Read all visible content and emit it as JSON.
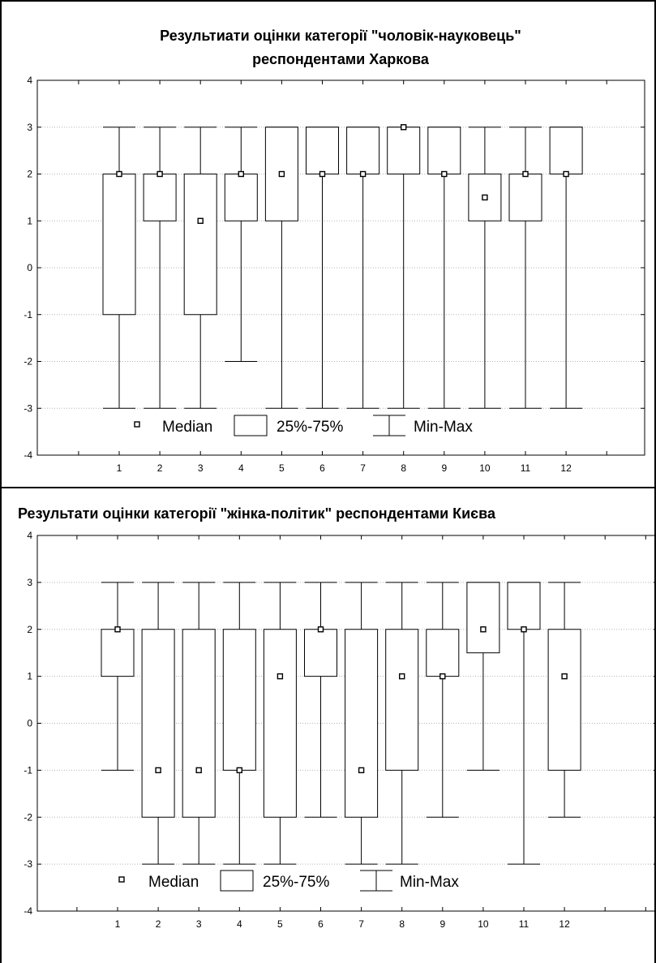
{
  "chart_data": [
    {
      "type": "box",
      "title_lines": [
        "Результиати оцінки категорії \"чоловік-науковець\"",
        "респондентами Харкова"
      ],
      "categories": [
        "1",
        "2",
        "3",
        "4",
        "5",
        "6",
        "7",
        "8",
        "9",
        "10",
        "11",
        "12"
      ],
      "ylim": [
        -4,
        4
      ],
      "yticks": [
        4,
        3,
        2,
        1,
        0,
        -1,
        -2,
        -3,
        -4
      ],
      "grid": true,
      "legend_position": "bottom-inside",
      "series": [
        {
          "min": -3,
          "q1": -1,
          "median": 2,
          "q3": 2,
          "max": 3
        },
        {
          "min": -3,
          "q1": 1,
          "median": 2,
          "q3": 2,
          "max": 3
        },
        {
          "min": -3,
          "q1": -1,
          "median": 1,
          "q3": 2,
          "max": 3
        },
        {
          "min": -2,
          "q1": 1,
          "median": 2,
          "q3": 2,
          "max": 3
        },
        {
          "min": -3,
          "q1": 1,
          "median": 2,
          "q3": 3,
          "max": 3
        },
        {
          "min": -3,
          "q1": 2,
          "median": 2,
          "q3": 3,
          "max": 3
        },
        {
          "min": -3,
          "q1": 2,
          "median": 2,
          "q3": 3,
          "max": 3
        },
        {
          "min": -3,
          "q1": 2,
          "median": 3,
          "q3": 3,
          "max": 3
        },
        {
          "min": -3,
          "q1": 2,
          "median": 2,
          "q3": 3,
          "max": 3
        },
        {
          "min": -3,
          "q1": 1,
          "median": 1.5,
          "q3": 2,
          "max": 3
        },
        {
          "min": -3,
          "q1": 1,
          "median": 2,
          "q3": 2,
          "max": 3
        },
        {
          "min": -3,
          "q1": 2,
          "median": 2,
          "q3": 3,
          "max": 3
        }
      ]
    },
    {
      "type": "box",
      "title_lines": [
        "Результати оцінки категорії \"жінка-політик\" респондентами Києва"
      ],
      "categories": [
        "1",
        "2",
        "3",
        "4",
        "5",
        "6",
        "7",
        "8",
        "9",
        "10",
        "11",
        "12"
      ],
      "ylim": [
        -4,
        4
      ],
      "yticks": [
        4,
        3,
        2,
        1,
        0,
        -1,
        -2,
        -3,
        -4
      ],
      "grid": true,
      "legend_position": "bottom-inside",
      "series": [
        {
          "min": -1,
          "q1": 1,
          "median": 2,
          "q3": 2,
          "max": 3
        },
        {
          "min": -3,
          "q1": -2,
          "median": -1,
          "q3": 2,
          "max": 3
        },
        {
          "min": -3,
          "q1": -2,
          "median": -1,
          "q3": 2,
          "max": 3
        },
        {
          "min": -3,
          "q1": -1,
          "median": -1,
          "q3": 2,
          "max": 3
        },
        {
          "min": -3,
          "q1": -2,
          "median": 1,
          "q3": 2,
          "max": 3
        },
        {
          "min": -2,
          "q1": 1,
          "median": 2,
          "q3": 2,
          "max": 3
        },
        {
          "min": -3,
          "q1": -2,
          "median": -1,
          "q3": 2,
          "max": 3
        },
        {
          "min": -3,
          "q1": -1,
          "median": 1,
          "q3": 2,
          "max": 3
        },
        {
          "min": -2,
          "q1": 1,
          "median": 1,
          "q3": 2,
          "max": 3
        },
        {
          "min": -1,
          "q1": 1.5,
          "median": 2,
          "q3": 3,
          "max": 3
        },
        {
          "min": -3,
          "q1": 2,
          "median": 2,
          "q3": 3,
          "max": 3
        },
        {
          "min": -2,
          "q1": -1,
          "median": 1,
          "q3": 2,
          "max": 3
        }
      ]
    }
  ],
  "legend": {
    "median_label": "Median",
    "box_label": "25%-75%",
    "whisker_label": "Min-Max"
  }
}
